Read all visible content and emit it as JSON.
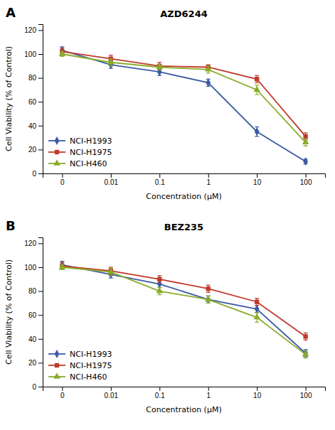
{
  "chart_data": [
    {
      "type": "line",
      "title": "AZD6244",
      "annotations": [
        "A"
      ],
      "xlabel": "Concentration (μM)",
      "ylabel": "Cell Viability (% of Control)",
      "categories": [
        "0",
        "0.01",
        "0.1",
        "1",
        "10",
        "100"
      ],
      "series": [
        {
          "name": "NCI-H1993",
          "color": "#3B5BA5",
          "marker": "diamond",
          "values": [
            103,
            91,
            85,
            76,
            35,
            10
          ],
          "errors": [
            3,
            3,
            3,
            3,
            4,
            2
          ]
        },
        {
          "name": "NCI-H1975",
          "color": "#C0392B",
          "marker": "square",
          "values": [
            102,
            96,
            90,
            89,
            79,
            31
          ],
          "errors": [
            3,
            3,
            3,
            2,
            3,
            3
          ]
        },
        {
          "name": "NCI-H460",
          "color": "#8AAC2A",
          "marker": "triangle",
          "values": [
            100,
            93,
            89,
            87,
            70,
            26
          ],
          "errors": [
            2,
            3,
            2,
            3,
            4,
            3
          ]
        }
      ],
      "ylim": [
        0,
        125
      ],
      "yticks": [
        0,
        20,
        40,
        60,
        80,
        100,
        120
      ],
      "grid": false,
      "legend": "lower left"
    },
    {
      "type": "line",
      "title": "BEZ235",
      "annotations": [
        "B"
      ],
      "xlabel": "Concentration (μM)",
      "ylabel": "Cell Viability (% of Control)",
      "categories": [
        "0",
        "0.01",
        "0.1",
        "1",
        "10",
        "100"
      ],
      "series": [
        {
          "name": "NCI-H1993",
          "color": "#3B5BA5",
          "marker": "diamond",
          "values": [
            102,
            94,
            86,
            73,
            65,
            28
          ],
          "errors": [
            3,
            3,
            3,
            3,
            3,
            3
          ]
        },
        {
          "name": "NCI-H1975",
          "color": "#C0392B",
          "marker": "square",
          "values": [
            101,
            97,
            90,
            82,
            71,
            42
          ],
          "errors": [
            3,
            3,
            3,
            3,
            3,
            3
          ]
        },
        {
          "name": "NCI-H460",
          "color": "#8AAC2A",
          "marker": "triangle",
          "values": [
            100,
            96,
            80,
            73,
            58,
            27
          ],
          "errors": [
            2,
            3,
            3,
            3,
            4,
            3
          ]
        }
      ],
      "ylim": [
        0,
        125
      ],
      "yticks": [
        0,
        20,
        40,
        60,
        80,
        100,
        120
      ],
      "grid": false,
      "legend": "lower left"
    }
  ]
}
